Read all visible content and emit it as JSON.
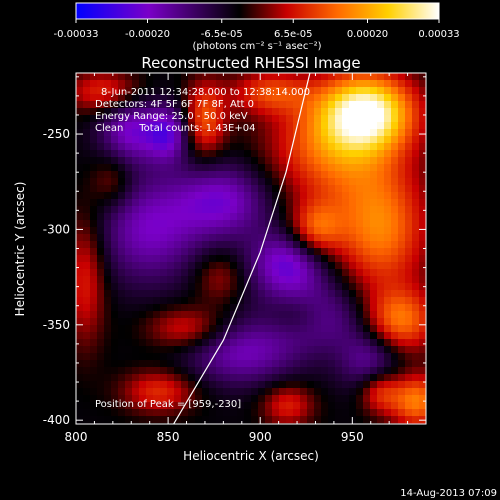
{
  "chart_data": {
    "type": "heatmap",
    "title": "Reconstructed RHESSI Image",
    "xlabel": "Heliocentric X (arcsec)",
    "ylabel": "Heliocentric Y (arcsec)",
    "xlim": [
      800,
      990
    ],
    "ylim": [
      -402,
      -218
    ],
    "x_ticks": [
      "800",
      "850",
      "900",
      "950"
    ],
    "x_tick_values": [
      800,
      850,
      900,
      950
    ],
    "y_ticks": [
      "-250",
      "-300",
      "-350",
      "-400"
    ],
    "y_tick_values": [
      -250,
      -300,
      -350,
      -400
    ],
    "colorbar": {
      "range": [
        -0.00033,
        0.00033
      ],
      "ticks": [
        "-0.00033",
        "-0.00020",
        "-6.5e-05",
        "6.5e-05",
        "0.00020",
        "0.00033"
      ],
      "tick_values": [
        -0.00033,
        -0.0002,
        -6.5e-05,
        6.5e-05,
        0.0002,
        0.00033
      ],
      "unit_label": "(photons cm⁻² s⁻¹ asec⁻²)",
      "colormap": [
        "#0000ff",
        "#7a00c8",
        "#000000",
        "#c80000",
        "#ff6a00",
        "#ffd000",
        "#ffffff"
      ]
    },
    "annotations": [
      "8-Jun-2011 12:34:28.000 to 12:38:14.000",
      "Detectors: 4F 5F 6F 7F 8F, Att 0",
      "Energy Range: 25.0 - 50.0 keV",
      "Clean     Total counts: 1.43E+04"
    ],
    "peak_label": "Position of Peak = [959,-230]",
    "peak": [
      959,
      -230
    ],
    "limb_curve": [
      [
        853,
        -402
      ],
      [
        880,
        -358
      ],
      [
        900,
        -312
      ],
      [
        914,
        -270
      ],
      [
        924,
        -230
      ],
      [
        927,
        -218
      ]
    ],
    "hotspots": [
      {
        "x": 958,
        "y": -238,
        "sx": 18,
        "sy": 14,
        "amp": 0.00033
      },
      {
        "x": 940,
        "y": -258,
        "sx": 25,
        "sy": 20,
        "amp": 0.00018
      },
      {
        "x": 965,
        "y": -300,
        "sx": 18,
        "sy": 22,
        "amp": 0.0002
      },
      {
        "x": 930,
        "y": -300,
        "sx": 10,
        "sy": 10,
        "amp": 0.00016
      },
      {
        "x": 975,
        "y": -348,
        "sx": 14,
        "sy": 12,
        "amp": 0.0002
      },
      {
        "x": 985,
        "y": -390,
        "sx": 10,
        "sy": 10,
        "amp": 0.0002
      },
      {
        "x": 965,
        "y": -385,
        "sx": 8,
        "sy": 8,
        "amp": 0.00014
      },
      {
        "x": 870,
        "y": -242,
        "sx": 8,
        "sy": 14,
        "amp": 0.00016
      },
      {
        "x": 905,
        "y": -228,
        "sx": 15,
        "sy": 8,
        "amp": 0.00014
      },
      {
        "x": 815,
        "y": -228,
        "sx": 14,
        "sy": 8,
        "amp": 0.00013
      },
      {
        "x": 805,
        "y": -325,
        "sx": 8,
        "sy": 25,
        "amp": 0.00012
      },
      {
        "x": 860,
        "y": -352,
        "sx": 15,
        "sy": 8,
        "amp": 0.00012
      },
      {
        "x": 845,
        "y": -385,
        "sx": 14,
        "sy": 8,
        "amp": 0.00013
      },
      {
        "x": 915,
        "y": -392,
        "sx": 10,
        "sy": 8,
        "amp": 0.00012
      },
      {
        "x": 820,
        "y": -275,
        "sx": 8,
        "sy": 10,
        "amp": 8e-05
      },
      {
        "x": 878,
        "y": -325,
        "sx": 10,
        "sy": 10,
        "amp": 8e-05
      },
      {
        "x": 920,
        "y": -345,
        "sx": 12,
        "sy": 8,
        "amp": 9e-05
      },
      {
        "x": 880,
        "y": -285,
        "sx": 18,
        "sy": 14,
        "amp": -0.00016
      },
      {
        "x": 840,
        "y": -300,
        "sx": 20,
        "sy": 20,
        "amp": -0.00015
      },
      {
        "x": 830,
        "y": -248,
        "sx": 12,
        "sy": 12,
        "amp": -0.00016
      },
      {
        "x": 915,
        "y": -318,
        "sx": 15,
        "sy": 12,
        "amp": -0.00018
      },
      {
        "x": 930,
        "y": -345,
        "sx": 20,
        "sy": 12,
        "amp": -0.00014
      },
      {
        "x": 890,
        "y": -365,
        "sx": 22,
        "sy": 12,
        "amp": -0.00014
      },
      {
        "x": 960,
        "y": -368,
        "sx": 12,
        "sy": 12,
        "amp": -0.00013
      },
      {
        "x": 850,
        "y": -250,
        "sx": 8,
        "sy": 10,
        "amp": -0.00016
      }
    ]
  },
  "footer": {
    "timestamp": "14-Aug-2013 07:09"
  }
}
